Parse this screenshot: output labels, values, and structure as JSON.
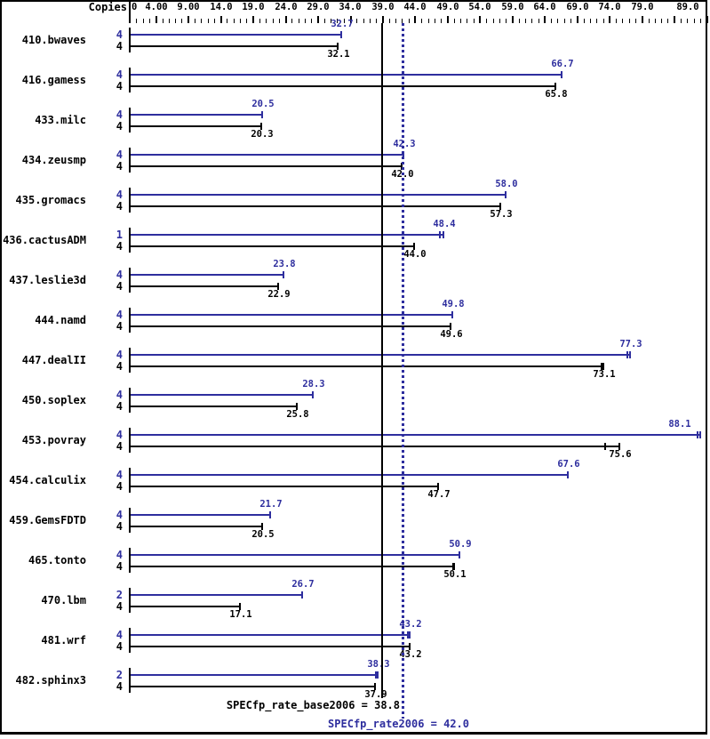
{
  "chart_data": {
    "type": "bar",
    "orientation": "horizontal",
    "copies_header": "Copies",
    "colors": {
      "peak": "#2e2e9e",
      "base": "#000000",
      "background": "#ffffff"
    },
    "xaxis": {
      "min": 0,
      "max": 89,
      "minor_step": 1,
      "major_step": 5,
      "labeled_ticks": [
        {
          "v": 0,
          "label": "0"
        },
        {
          "v": 4,
          "label": "4.00"
        },
        {
          "v": 9,
          "label": "9.00"
        },
        {
          "v": 14,
          "label": "14.0"
        },
        {
          "v": 19,
          "label": "19.0"
        },
        {
          "v": 24,
          "label": "24.0"
        },
        {
          "v": 29,
          "label": "29.0"
        },
        {
          "v": 34,
          "label": "34.0"
        },
        {
          "v": 39,
          "label": "39.0"
        },
        {
          "v": 44,
          "label": "44.0"
        },
        {
          "v": 49,
          "label": "49.0"
        },
        {
          "v": 54,
          "label": "54.0"
        },
        {
          "v": 59,
          "label": "59.0"
        },
        {
          "v": 64,
          "label": "64.0"
        },
        {
          "v": 69,
          "label": "69.0"
        },
        {
          "v": 74,
          "label": "74.0"
        },
        {
          "v": 79,
          "label": "79.0"
        },
        {
          "v": 89,
          "label": "89.0"
        }
      ]
    },
    "series_names": {
      "peak": "SPECfp_rate2006",
      "base": "SPECfp_rate_base2006"
    },
    "benchmarks": [
      {
        "name": "410.bwaves",
        "peak": {
          "copies": "4",
          "value": 32.7,
          "label": "32.7"
        },
        "base": {
          "copies": "4",
          "value": 32.1,
          "label": "32.1"
        }
      },
      {
        "name": "416.gamess",
        "peak": {
          "copies": "4",
          "value": 66.7,
          "label": "66.7"
        },
        "base": {
          "copies": "4",
          "value": 65.8,
          "label": "65.8"
        }
      },
      {
        "name": "433.milc",
        "peak": {
          "copies": "4",
          "value": 20.5,
          "label": "20.5"
        },
        "base": {
          "copies": "4",
          "value": 20.3,
          "label": "20.3"
        }
      },
      {
        "name": "434.zeusmp",
        "peak": {
          "copies": "4",
          "value": 42.3,
          "label": "42.3"
        },
        "base": {
          "copies": "4",
          "value": 42.0,
          "label": "42.0"
        }
      },
      {
        "name": "435.gromacs",
        "peak": {
          "copies": "4",
          "value": 58.0,
          "label": "58.0"
        },
        "base": {
          "copies": "4",
          "value": 57.3,
          "label": "57.3"
        }
      },
      {
        "name": "436.cactusADM",
        "peak": {
          "copies": "1",
          "value": 48.4,
          "label": "48.4",
          "run_ticks": [
            47.8
          ]
        },
        "base": {
          "copies": "4",
          "value": 44.0,
          "label": "44.0"
        }
      },
      {
        "name": "437.leslie3d",
        "peak": {
          "copies": "4",
          "value": 23.8,
          "label": "23.8"
        },
        "base": {
          "copies": "4",
          "value": 22.9,
          "label": "22.9"
        }
      },
      {
        "name": "444.namd",
        "peak": {
          "copies": "4",
          "value": 49.8,
          "label": "49.8"
        },
        "base": {
          "copies": "4",
          "value": 49.6,
          "label": "49.6"
        }
      },
      {
        "name": "447.dealII",
        "peak": {
          "copies": "4",
          "value": 77.3,
          "label": "77.3",
          "run_ticks": [
            76.7
          ]
        },
        "base": {
          "copies": "4",
          "value": 73.1,
          "label": "73.1",
          "run_ticks": [
            72.7
          ]
        }
      },
      {
        "name": "450.soplex",
        "peak": {
          "copies": "4",
          "value": 28.3,
          "label": "28.3"
        },
        "base": {
          "copies": "4",
          "value": 25.8,
          "label": "25.8"
        }
      },
      {
        "name": "453.povray",
        "peak": {
          "copies": "4",
          "value": 88.1,
          "label": "88.1",
          "run_ticks": [
            87.5
          ]
        },
        "base": {
          "copies": "4",
          "value": 75.6,
          "label": "75.6",
          "run_ticks": [
            73.3
          ]
        }
      },
      {
        "name": "454.calculix",
        "peak": {
          "copies": "4",
          "value": 67.6,
          "label": "67.6"
        },
        "base": {
          "copies": "4",
          "value": 47.7,
          "label": "47.7"
        }
      },
      {
        "name": "459.GemsFDTD",
        "peak": {
          "copies": "4",
          "value": 21.7,
          "label": "21.7"
        },
        "base": {
          "copies": "4",
          "value": 20.5,
          "label": "20.5"
        }
      },
      {
        "name": "465.tonto",
        "peak": {
          "copies": "4",
          "value": 50.9,
          "label": "50.9"
        },
        "base": {
          "copies": "4",
          "value": 50.1,
          "label": "50.1",
          "run_ticks": [
            49.8
          ]
        }
      },
      {
        "name": "470.lbm",
        "peak": {
          "copies": "2",
          "value": 26.7,
          "label": "26.7"
        },
        "base": {
          "copies": "4",
          "value": 17.1,
          "label": "17.1"
        }
      },
      {
        "name": "481.wrf",
        "peak": {
          "copies": "4",
          "value": 43.2,
          "label": "43.2",
          "run_ticks": [
            42.8
          ]
        },
        "base": {
          "copies": "4",
          "value": 43.2,
          "label": "43.2"
        }
      },
      {
        "name": "482.sphinx3",
        "peak": {
          "copies": "2",
          "value": 38.3,
          "label": "38.3",
          "run_ticks": [
            37.9
          ]
        },
        "base": {
          "copies": "4",
          "value": 37.9,
          "label": "37.9"
        }
      }
    ],
    "reference_lines": [
      {
        "id": "base",
        "value": 38.8,
        "style": "solid",
        "color": "#000000",
        "label": "SPECfp_rate_base2006 = 38.8"
      },
      {
        "id": "peak",
        "value": 42.0,
        "style": "dotted",
        "color": "#2e2e9e",
        "label": "SPECfp_rate2006 = 42.0"
      }
    ]
  }
}
